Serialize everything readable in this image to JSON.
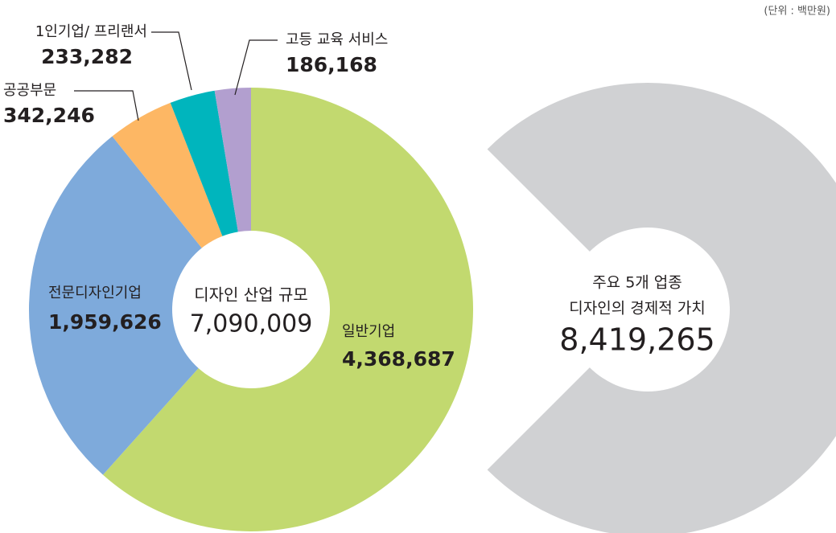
{
  "chart_data": [
    {
      "type": "donut",
      "unit_note": "(단위 : 백만원)",
      "categories": [
        "일반기업",
        "전문디자인기업",
        "공공부문",
        "1인기업/ 프리랜서",
        "고등 교육 서비스"
      ],
      "values": [
        4368687,
        1959626,
        342246,
        233282,
        186168
      ],
      "value_labels": [
        "4,368,687",
        "1,959,626",
        "342,246",
        "233,282",
        "186,168"
      ],
      "colors": [
        "#c2d96f",
        "#7eaadb",
        "#fdb764",
        "#00b5bd",
        "#b29fcf"
      ],
      "center_title": "디자인 산업 규모",
      "total": 7090009,
      "total_label": "7,090,009"
    },
    {
      "type": "ring",
      "subtitle": [
        "주요 5개 업종",
        "디자인의 경제적 가치"
      ],
      "value": 8419265,
      "value_label": "8,419,265",
      "color": "#d0d1d3"
    }
  ]
}
